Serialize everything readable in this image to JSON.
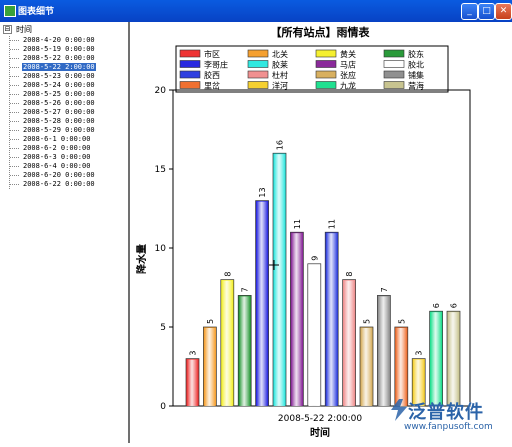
{
  "window": {
    "title": "图表细节",
    "buttons": [
      "minimize",
      "maximize",
      "close"
    ]
  },
  "tree": {
    "root_label": "时间",
    "expander": "⊟",
    "items": [
      "2008-4-20 0:00:00",
      "2008-5-19 0:00:00",
      "2008-5-22 0:00:00",
      "2008-5-22 2:00:00",
      "2008-5-23 0:00:00",
      "2008-5-24 0:00:00",
      "2008-5-25 0:00:00",
      "2008-5-26 0:00:00",
      "2008-5-27 0:00:00",
      "2008-5-28 0:00:00",
      "2008-5-29 0:00:00",
      "2008-6-1 0:00:00",
      "2008-6-2 0:00:00",
      "2008-6-3 0:00:00",
      "2008-6-4 0:00:00",
      "2008-6-20 0:00:00",
      "2008-6-22 0:00:00"
    ],
    "selected_index": 3
  },
  "chart_data": {
    "type": "bar",
    "title": "【所有站点】雨情表",
    "xlabel": "时间",
    "ylabel": "降水量",
    "category": "2008-5-22 2:00:00",
    "ylim": [
      0,
      20
    ],
    "yticks": [
      0,
      5,
      10,
      15,
      20
    ],
    "grid": false,
    "legend_position": "top",
    "series": [
      {
        "name": "市区",
        "value": 3,
        "color": "#ee3333"
      },
      {
        "name": "北关",
        "value": 5,
        "color": "#f5a030"
      },
      {
        "name": "黄关",
        "value": 8,
        "color": "#f5f030"
      },
      {
        "name": "胶东",
        "value": 7,
        "color": "#2a9a3a"
      },
      {
        "name": "李哥庄",
        "value": 13,
        "color": "#2a2ae0"
      },
      {
        "name": "胶莱",
        "value": 16,
        "color": "#30e8e0"
      },
      {
        "name": "马店",
        "value": 11,
        "color": "#8a2a9a"
      },
      {
        "name": "胶北",
        "value": 9,
        "color": "#ffffff"
      },
      {
        "name": "胶西",
        "value": 11,
        "color": "#3040e0"
      },
      {
        "name": "杜村",
        "value": 8,
        "color": "#f09090"
      },
      {
        "name": "张应",
        "value": 5,
        "color": "#d8b060"
      },
      {
        "name": "铺集",
        "value": 7,
        "color": "#909090"
      },
      {
        "name": "里岔",
        "value": 5,
        "color": "#f07030"
      },
      {
        "name": "洋河",
        "value": 3,
        "color": "#f5d030"
      },
      {
        "name": "九龙",
        "value": 6,
        "color": "#20e090"
      },
      {
        "name": "营海",
        "value": 6,
        "color": "#c8c490"
      }
    ]
  },
  "watermark": {
    "brand": "泛普软件",
    "url": "www.fanpusoft.com"
  }
}
